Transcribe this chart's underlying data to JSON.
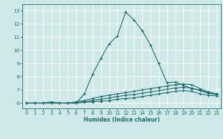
{
  "xlabel": "Humidex (Indice chaleur)",
  "ylabel": "",
  "xlim": [
    -0.5,
    23.5
  ],
  "ylim": [
    5.6,
    13.5
  ],
  "xticks": [
    0,
    1,
    2,
    3,
    4,
    5,
    6,
    7,
    8,
    9,
    10,
    11,
    12,
    13,
    14,
    15,
    16,
    17,
    18,
    19,
    20,
    21,
    22,
    23
  ],
  "yticks": [
    6,
    7,
    8,
    9,
    10,
    11,
    12,
    13
  ],
  "bg_color": "#cfe8e8",
  "line_color": "#1a6b6b",
  "grid_color": "#ffffff",
  "series": [
    {
      "x": [
        0,
        1,
        2,
        3,
        4,
        5,
        6,
        7,
        8,
        9,
        10,
        11,
        12,
        13,
        14,
        15,
        16,
        17,
        18,
        19,
        20,
        21,
        22,
        23
      ],
      "y": [
        6.0,
        6.0,
        6.0,
        6.1,
        6.0,
        6.0,
        6.0,
        6.7,
        8.2,
        9.4,
        10.5,
        11.1,
        12.9,
        12.3,
        11.5,
        10.4,
        9.0,
        7.55,
        7.6,
        7.35,
        7.1,
        7.0,
        6.8,
        6.7
      ]
    },
    {
      "x": [
        0,
        1,
        2,
        3,
        4,
        5,
        6,
        7,
        8,
        9,
        10,
        11,
        12,
        13,
        14,
        15,
        16,
        17,
        18,
        19,
        20,
        21,
        22,
        23
      ],
      "y": [
        6.0,
        6.0,
        6.0,
        6.0,
        6.0,
        6.0,
        6.1,
        6.2,
        6.35,
        6.5,
        6.6,
        6.7,
        6.8,
        6.9,
        7.0,
        7.1,
        7.2,
        7.3,
        7.4,
        7.45,
        7.4,
        7.1,
        6.85,
        6.7
      ]
    },
    {
      "x": [
        0,
        1,
        2,
        3,
        4,
        5,
        6,
        7,
        8,
        9,
        10,
        11,
        12,
        13,
        14,
        15,
        16,
        17,
        18,
        19,
        20,
        21,
        22,
        23
      ],
      "y": [
        6.0,
        6.0,
        6.0,
        6.0,
        6.0,
        6.0,
        6.05,
        6.1,
        6.2,
        6.3,
        6.4,
        6.5,
        6.6,
        6.65,
        6.75,
        6.85,
        6.95,
        7.05,
        7.15,
        7.2,
        7.15,
        6.95,
        6.75,
        6.65
      ]
    },
    {
      "x": [
        0,
        1,
        2,
        3,
        4,
        5,
        6,
        7,
        8,
        9,
        10,
        11,
        12,
        13,
        14,
        15,
        16,
        17,
        18,
        19,
        20,
        21,
        22,
        23
      ],
      "y": [
        6.0,
        6.0,
        6.0,
        6.0,
        6.0,
        6.0,
        6.0,
        6.05,
        6.1,
        6.15,
        6.2,
        6.3,
        6.35,
        6.4,
        6.5,
        6.6,
        6.7,
        6.8,
        6.9,
        6.95,
        6.9,
        6.7,
        6.6,
        6.55
      ]
    }
  ]
}
